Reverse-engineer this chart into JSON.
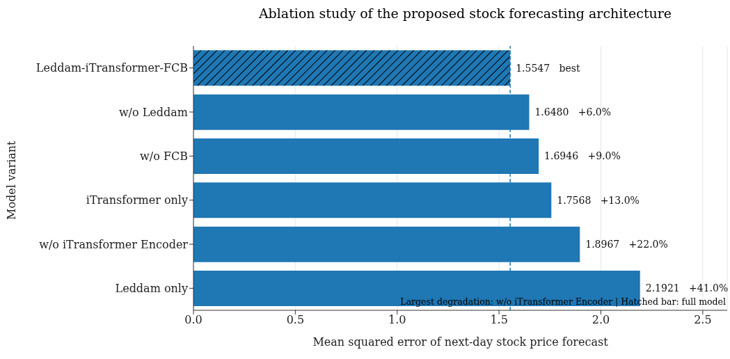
{
  "chart_data": {
    "type": "bar",
    "orientation": "horizontal",
    "title": "Ablation study of the proposed stock forecasting architecture",
    "xlabel": "Mean squared error of next-day stock price forecast",
    "ylabel": "Model variant",
    "categories": [
      "Leddam-iTransformer-FCB",
      "w/o Leddam",
      "w/o FCB",
      "iTransformer only",
      "w/o iTransformer Encoder",
      "Leddam only"
    ],
    "values": [
      1.5547,
      1.648,
      1.6946,
      1.7568,
      1.8967,
      2.1921
    ],
    "value_labels": [
      "1.5547   best",
      "1.6480   +6.0%",
      "1.6946   +9.0%",
      "1.7568   +13.0%",
      "1.8967   +22.0%",
      "2.1921   +41.0%"
    ],
    "color": "#1f77b4",
    "xlim": [
      0,
      2.62
    ],
    "xticks": [
      {
        "value": 0,
        "label": "0.0"
      },
      0.5,
      {
        "value": 1,
        "label": "1.0"
      },
      1.5,
      {
        "value": 2,
        "label": "2.0"
      },
      2.5
    ],
    "ref_lines": [
      {
        "axis": "x",
        "value": 1.5547,
        "label": null,
        "color": "#1f77b4",
        "line_style": "dashed"
      }
    ],
    "annotations": [
      "Largest degradation: w/o iTransformer Encoder | Hatched bar: full model"
    ],
    "grid": "x"
  }
}
